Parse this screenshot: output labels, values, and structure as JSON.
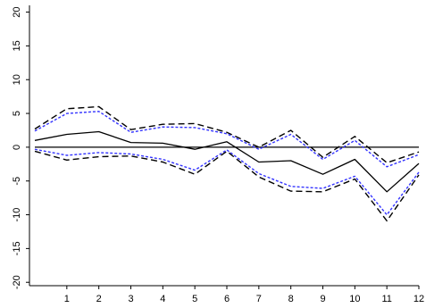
{
  "chart_data": {
    "type": "line",
    "title": "",
    "xlabel": "",
    "ylabel": "",
    "x": [
      0,
      1,
      2,
      3,
      4,
      5,
      6,
      7,
      8,
      9,
      10,
      11,
      12
    ],
    "x_ticks": [
      1,
      2,
      3,
      4,
      5,
      6,
      7,
      8,
      9,
      10,
      11,
      12
    ],
    "y_ticks": [
      -20,
      -15,
      -10,
      -5,
      0,
      5,
      10,
      15,
      20
    ],
    "xlim": [
      0,
      12
    ],
    "ylim": [
      -20.5,
      21
    ],
    "grid": false,
    "reference_line": {
      "y": 0,
      "color": "#000000"
    },
    "series": [
      {
        "role": "point estimate",
        "style": "solid",
        "color": "#000000",
        "values": [
          1.0,
          1.9,
          2.3,
          0.7,
          0.6,
          -0.3,
          0.8,
          -2.2,
          -2.0,
          -4.0,
          -1.8,
          -6.6,
          -2.4
        ]
      },
      {
        "role": "upper bound (outer)",
        "style": "dashed",
        "color": "#000000",
        "values": [
          2.7,
          5.7,
          6.0,
          2.6,
          3.4,
          3.5,
          2.2,
          0.0,
          2.5,
          -1.5,
          1.6,
          -2.3,
          -0.7
        ]
      },
      {
        "role": "lower bound (outer)",
        "style": "dashed",
        "color": "#000000",
        "values": [
          -0.6,
          -1.9,
          -1.4,
          -1.3,
          -2.2,
          -4.0,
          -0.6,
          -4.4,
          -6.5,
          -6.6,
          -4.7,
          -10.9,
          -4.1
        ]
      },
      {
        "role": "upper bound (inner)",
        "style": "dotted",
        "color": "#3333ff",
        "values": [
          2.4,
          5.0,
          5.3,
          2.2,
          3.0,
          2.9,
          2.0,
          -0.3,
          1.9,
          -1.8,
          1.0,
          -2.9,
          -1.1
        ]
      },
      {
        "role": "lower bound (inner)",
        "style": "dotted",
        "color": "#3333ff",
        "values": [
          -0.3,
          -1.2,
          -0.8,
          -1.0,
          -1.8,
          -3.4,
          -0.4,
          -3.9,
          -5.8,
          -6.1,
          -4.3,
          -10.0,
          -3.7
        ]
      }
    ]
  }
}
